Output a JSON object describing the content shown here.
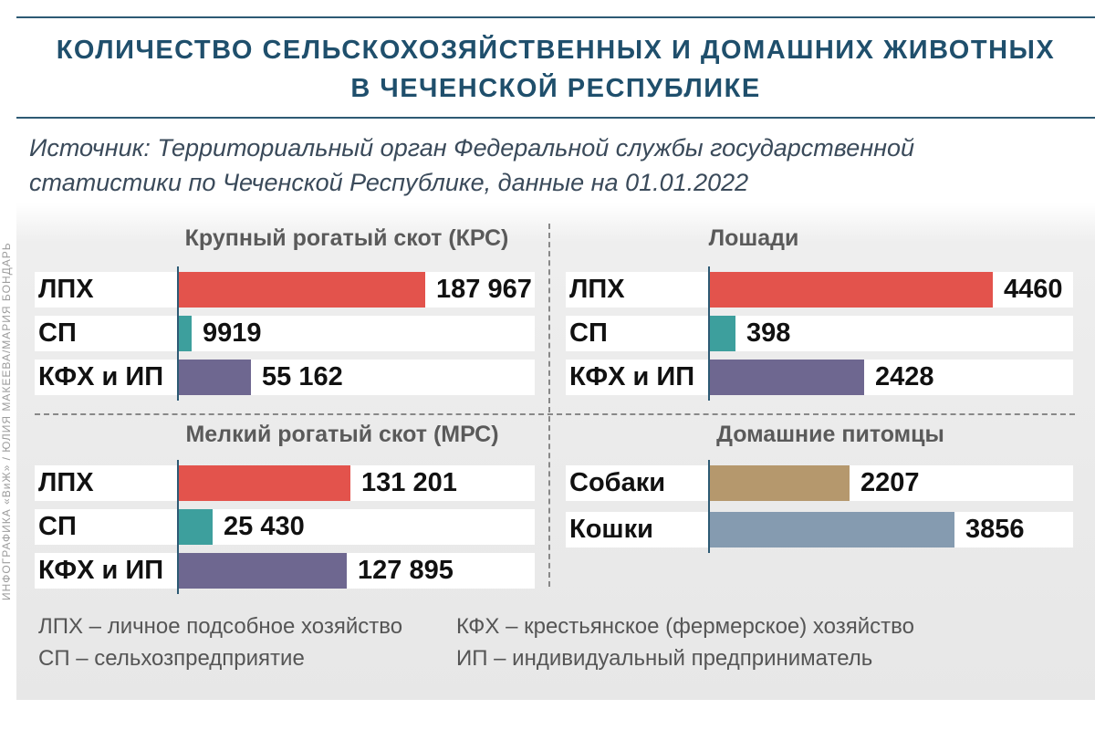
{
  "title_line1": "КОЛИЧЕСТВО СЕЛЬСКОХОЗЯЙСТВЕННЫХ И ДОМАШНИХ ЖИВОТНЫХ",
  "title_line2": "В ЧЕЧЕНСКОЙ РЕСПУБЛИКЕ",
  "source_line1": "Источник: Территориальный орган Федеральной службы государственной",
  "source_line2": "статистики по Чеченской Республике, данные на 01.01.2022",
  "credit": "ИНФОГРАФИКА «ВиЖ» / ЮЛИЯ МАКЕЕВА/МАРИЯ БОНДАРЬ",
  "legend": {
    "lph": "ЛПХ – личное подсобное хозяйство",
    "sp": "СП – сельхозпредприятие",
    "kfh": "КФХ – крестьянское (фермерское) хозяйство",
    "ip": "ИП – индивидуальный предприниматель"
  },
  "colors": {
    "lph": "#e3534c",
    "sp": "#3d9f9d",
    "kfh": "#6e6790",
    "dogs": "#b5986d",
    "cats": "#859bb0",
    "accent": "#1f4f6c"
  },
  "chart_data": [
    {
      "type": "bar",
      "orientation": "horizontal",
      "title": "Крупный рогатый скот (КРС)",
      "categories": [
        "ЛПХ",
        "СП",
        "КФХ и ИП"
      ],
      "values": [
        187967,
        9919,
        55162
      ],
      "value_labels": [
        "187 967",
        "9919",
        "55 162"
      ]
    },
    {
      "type": "bar",
      "orientation": "horizontal",
      "title": "Лошади",
      "categories": [
        "ЛПХ",
        "СП",
        "КФХ и ИП"
      ],
      "values": [
        4460,
        398,
        2428
      ],
      "value_labels": [
        "4460",
        "398",
        "2428"
      ]
    },
    {
      "type": "bar",
      "orientation": "horizontal",
      "title": "Мелкий рогатый скот (МРС)",
      "categories": [
        "ЛПХ",
        "СП",
        "КФХ и ИП"
      ],
      "values": [
        131201,
        25430,
        127895
      ],
      "value_labels": [
        "131 201",
        "25 430",
        "127 895"
      ]
    },
    {
      "type": "bar",
      "orientation": "horizontal",
      "title": "Домашние питомцы",
      "categories": [
        "Собаки",
        "Кошки"
      ],
      "values": [
        2207,
        3856
      ],
      "value_labels": [
        "2207",
        "3856"
      ]
    }
  ]
}
